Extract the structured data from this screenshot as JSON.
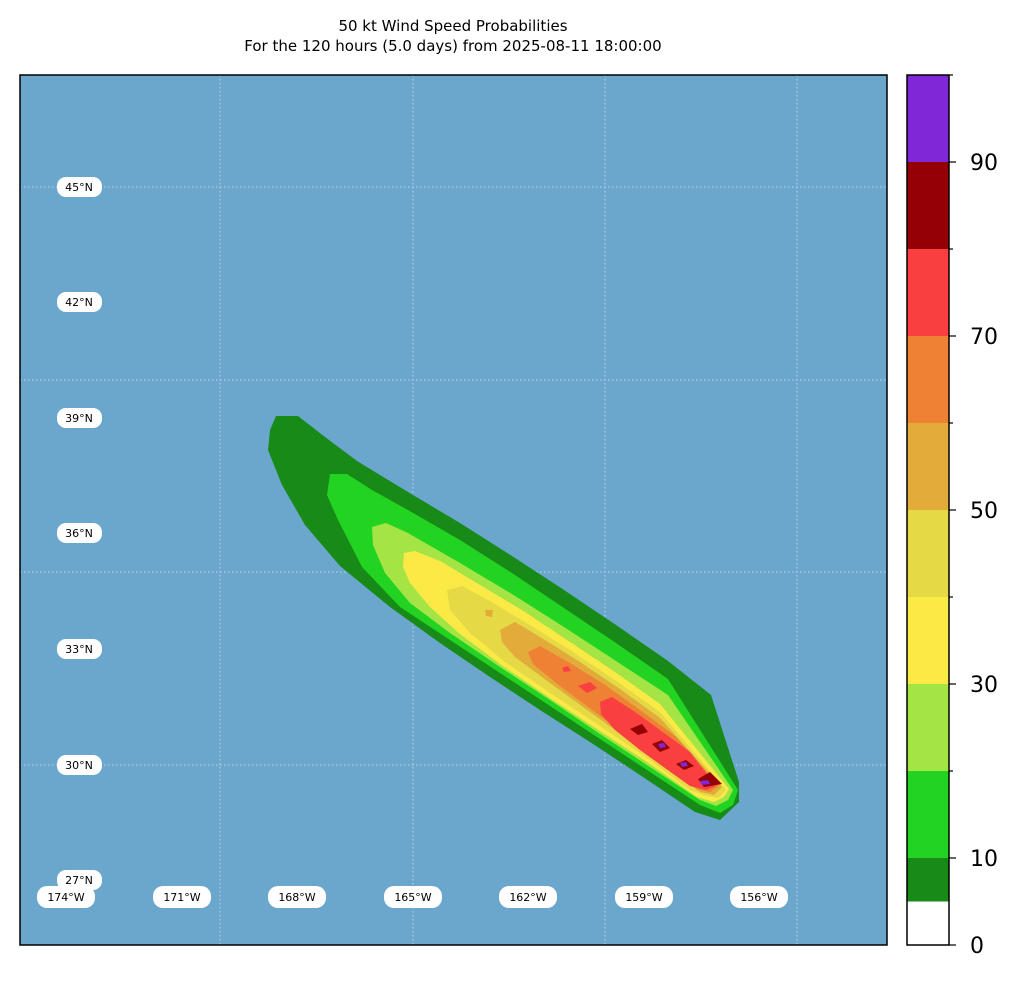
{
  "title": {
    "line1": "50 kt Wind Speed Probabilities",
    "line2": "For the 120 hours (5.0 days) from 2025-08-11 18:00:00"
  },
  "map": {
    "ocean_color": "#6ba6cc",
    "gridline_color": "#cfe0ee",
    "lat_labels": [
      "45°N",
      "42°N",
      "39°N",
      "36°N",
      "33°N",
      "30°N",
      "27°N"
    ],
    "lon_labels": [
      "174°W",
      "171°W",
      "168°W",
      "165°W",
      "162°W",
      "159°W",
      "156°W"
    ]
  },
  "colorbar": {
    "tick_labels": [
      "0",
      "10",
      "30",
      "50",
      "70",
      "90"
    ],
    "bins": [
      {
        "from": 0,
        "to": 5,
        "color": "#ffffff"
      },
      {
        "from": 5,
        "to": 10,
        "color": "#178a17"
      },
      {
        "from": 10,
        "to": 20,
        "color": "#22d322"
      },
      {
        "from": 20,
        "to": 30,
        "color": "#a4e445"
      },
      {
        "from": 30,
        "to": 40,
        "color": "#fbea46"
      },
      {
        "from": 40,
        "to": 50,
        "color": "#e6d946"
      },
      {
        "from": 50,
        "to": 60,
        "color": "#e2ab3a"
      },
      {
        "from": 60,
        "to": 70,
        "color": "#ee8133"
      },
      {
        "from": 70,
        "to": 80,
        "color": "#f93f40"
      },
      {
        "from": 80,
        "to": 90,
        "color": "#950004"
      },
      {
        "from": 90,
        "to": 100,
        "color": "#8028d8"
      }
    ]
  }
}
